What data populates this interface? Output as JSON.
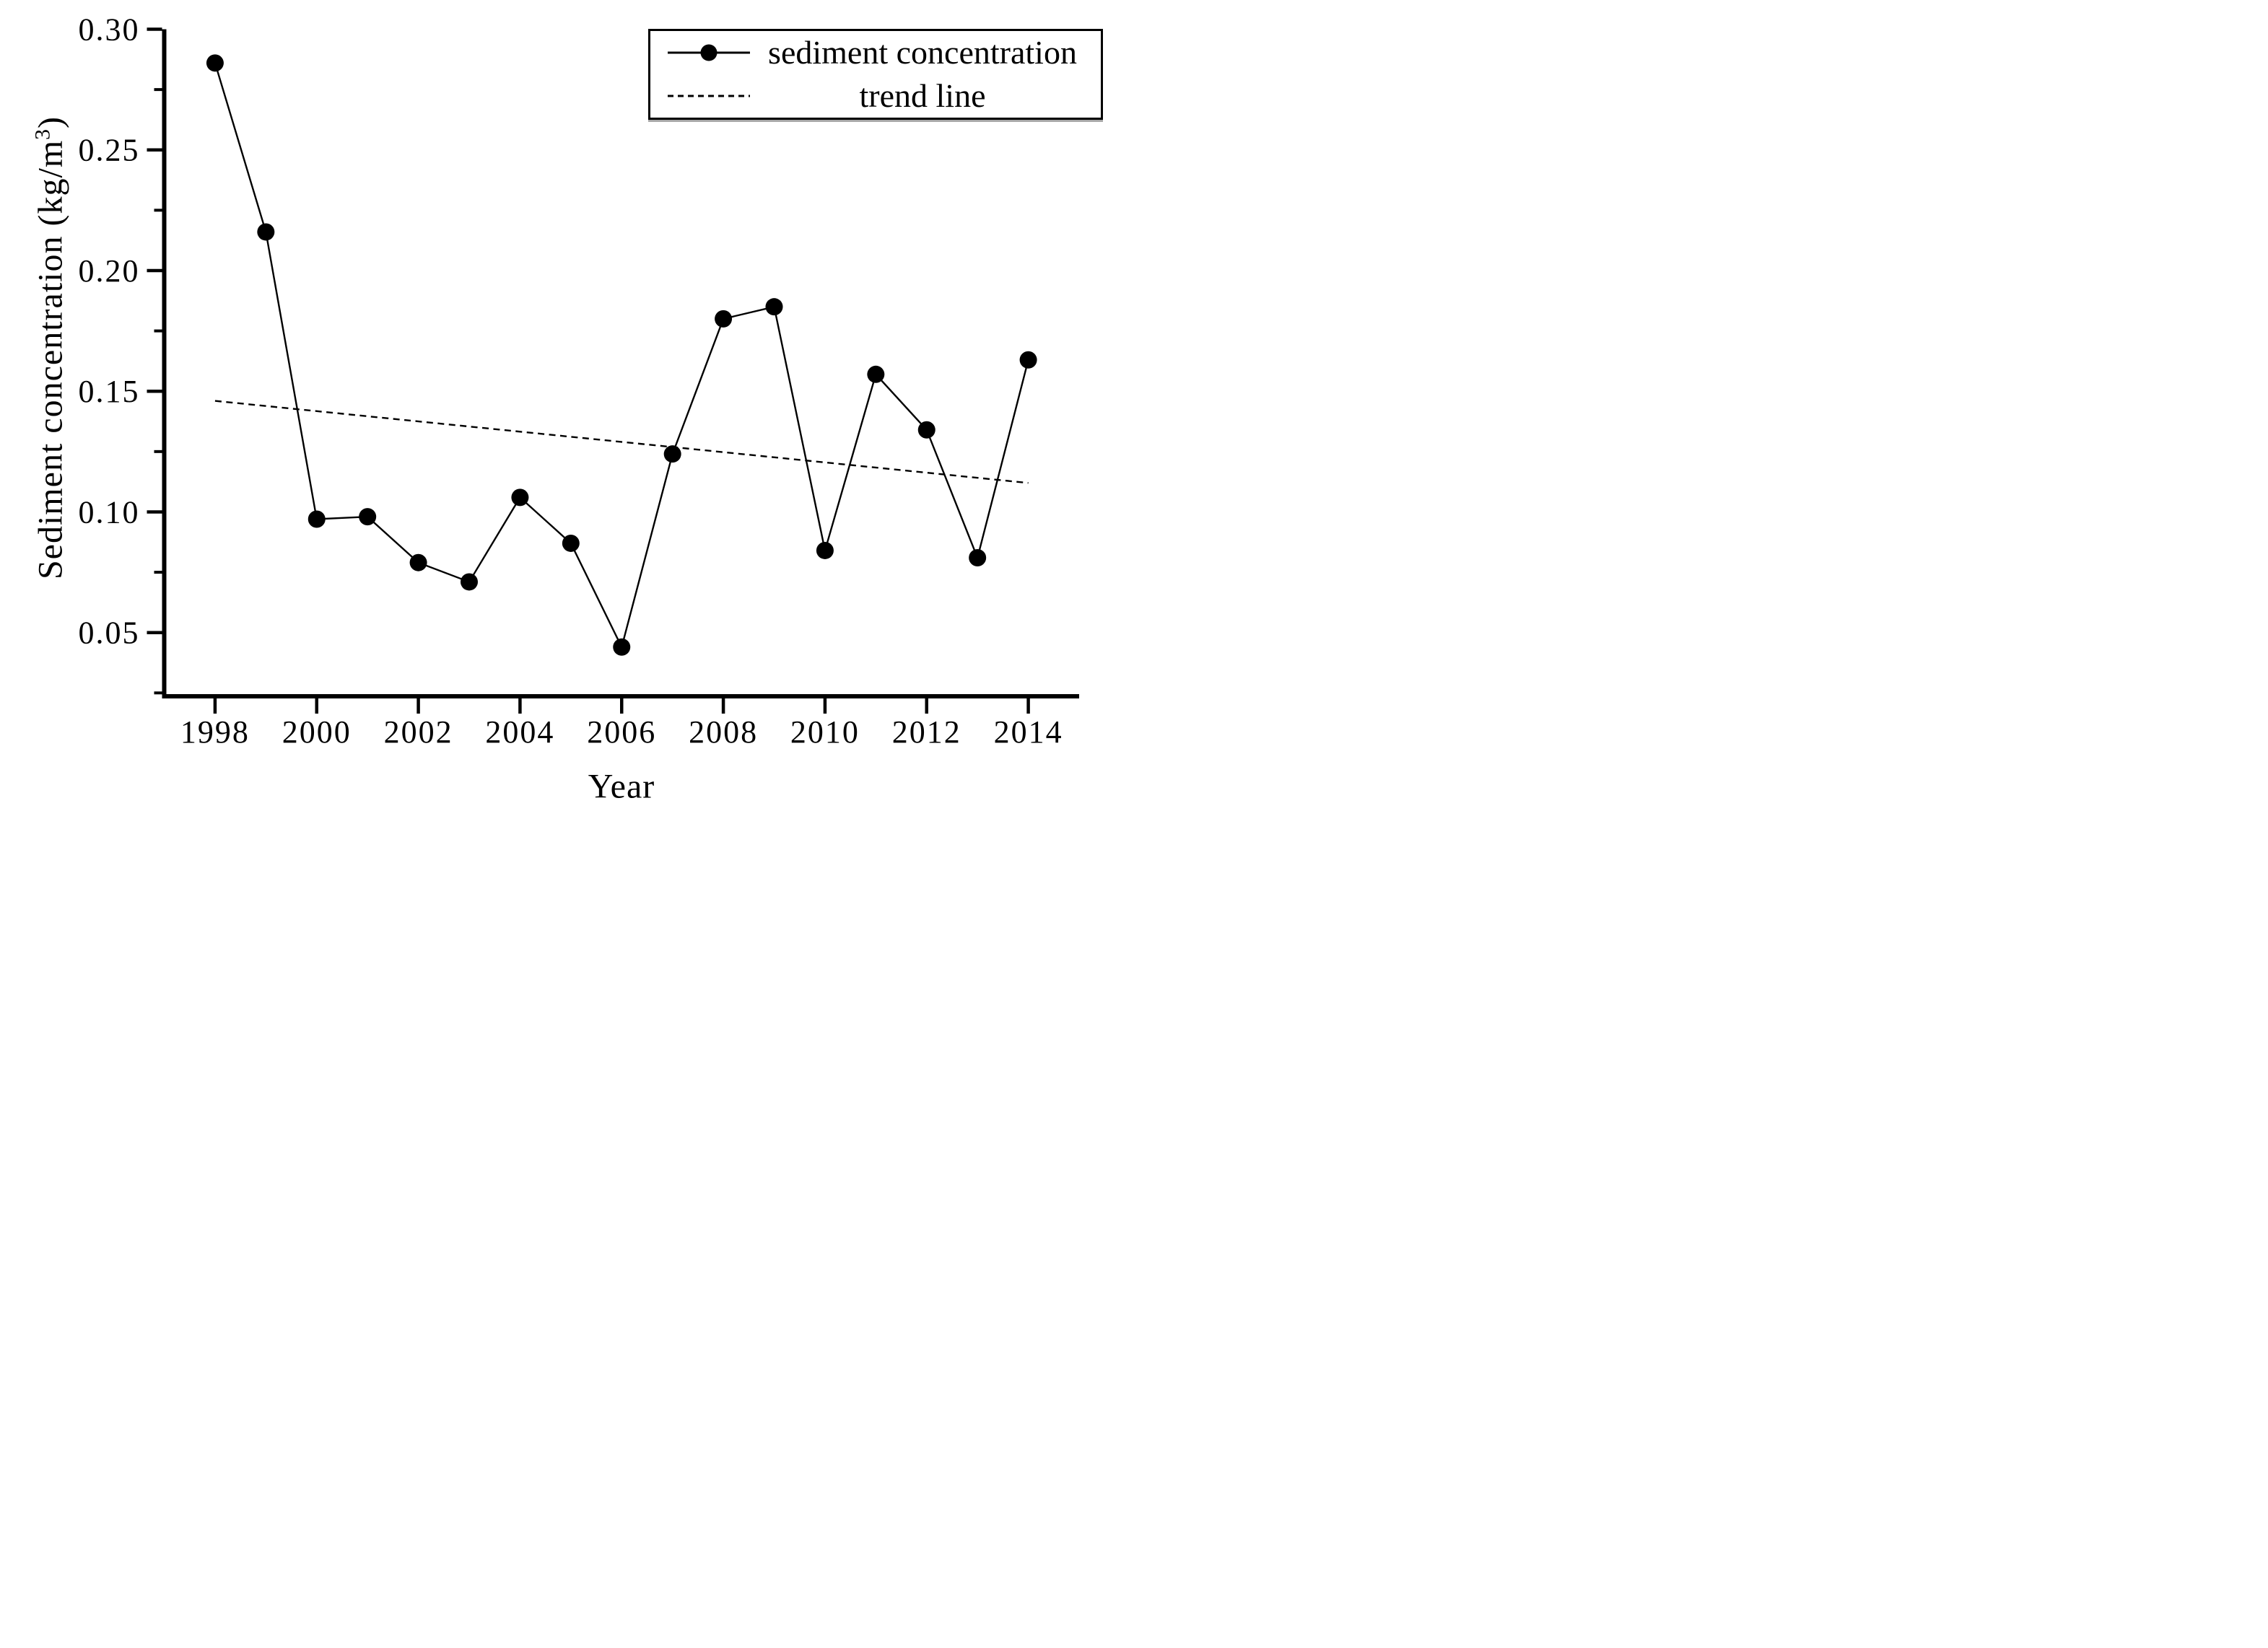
{
  "figure": {
    "background": "#ffffff",
    "ink": "#000000"
  },
  "y_axis": {
    "title_prefix": "Sediment concentration (kg/m",
    "title_superscript": "3",
    "title_close": ")",
    "tick_labels": [
      "0.30",
      "0.25",
      "0.20",
      "0.15",
      "0.10",
      "0.05"
    ],
    "tick_values": [
      0.3,
      0.25,
      0.2,
      0.15,
      0.1,
      0.05
    ],
    "minor_tick_values": [
      0.275,
      0.225,
      0.175,
      0.125,
      0.075,
      0.025
    ]
  },
  "x_axis": {
    "title": "Year",
    "tick_labels": [
      "1998",
      "2000",
      "2002",
      "2004",
      "2006",
      "2008",
      "2010",
      "2012",
      "2014"
    ],
    "tick_values": [
      1998,
      2000,
      2002,
      2004,
      2006,
      2008,
      2010,
      2012,
      2014
    ]
  },
  "legend": {
    "items": [
      {
        "label": "sediment concentration",
        "symbol": "solid-line-with-filled-dot"
      },
      {
        "label": "trend line",
        "symbol": "dashed-line"
      }
    ]
  },
  "chart_data": {
    "type": "line",
    "title": "",
    "xlabel": "Year",
    "ylabel": "Sediment concentration (kg/m³)",
    "x": [
      1998,
      1999,
      2000,
      2001,
      2002,
      2003,
      2004,
      2005,
      2006,
      2007,
      2008,
      2009,
      2010,
      2011,
      2012,
      2013,
      2014
    ],
    "series": [
      {
        "name": "sediment concentration",
        "style": "solid",
        "marker": "filled-circle",
        "values": [
          0.286,
          0.216,
          0.097,
          0.098,
          0.079,
          0.071,
          0.106,
          0.087,
          0.044,
          0.124,
          0.18,
          0.185,
          0.084,
          0.157,
          0.134,
          0.081,
          0.163
        ]
      },
      {
        "name": "trend line",
        "style": "dashed",
        "marker": "none",
        "trend": {
          "x_start": 1998,
          "y_start": 0.146,
          "x_end": 2014,
          "y_end": 0.112
        }
      }
    ],
    "xlim": [
      1997,
      2015
    ],
    "ylim": [
      0.0236,
      0.3
    ],
    "grid": false,
    "legend_position": "top-right"
  }
}
